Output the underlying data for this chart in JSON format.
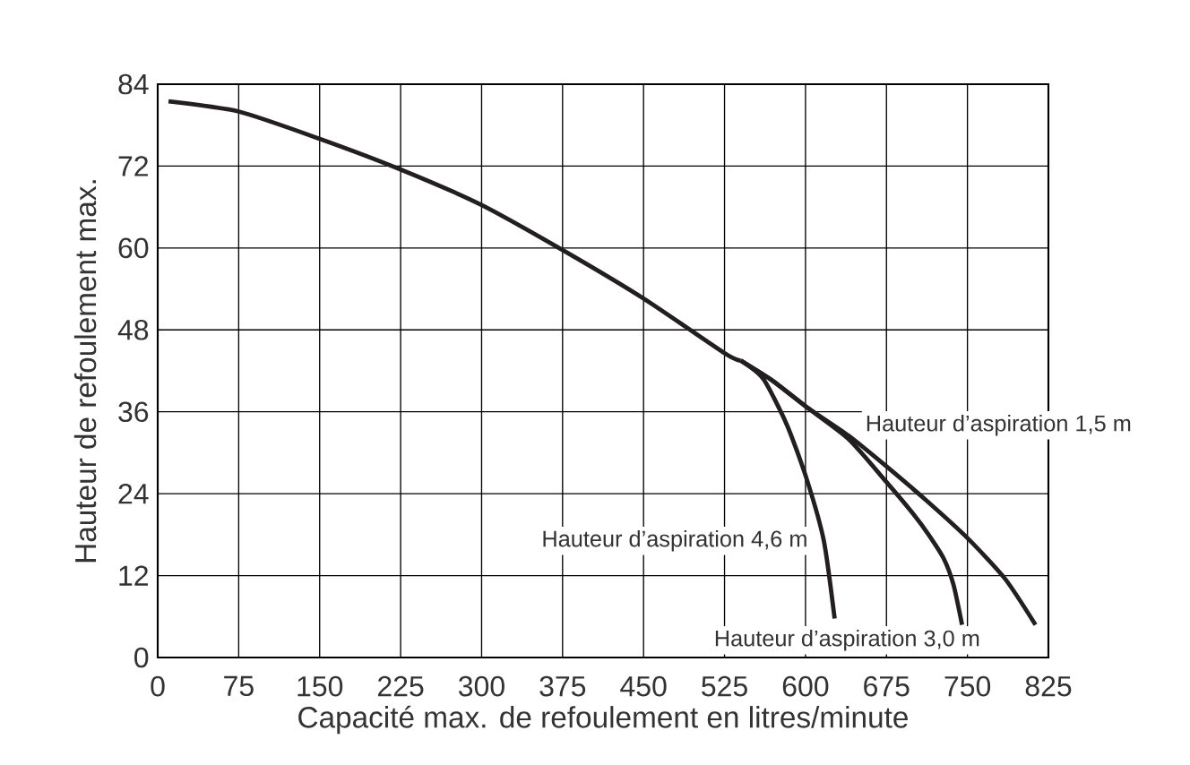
{
  "chart_data": {
    "type": "line",
    "xlabel": "Capacité max. de refoulement  en litres/minute",
    "ylabel": "Hauteur de refoulement max.",
    "xlim": [
      0,
      825
    ],
    "xticks": [
      0,
      75,
      150,
      225,
      300,
      375,
      450,
      525,
      600,
      675,
      750,
      825
    ],
    "ylim": [
      0,
      84
    ],
    "yticks": [
      0,
      12,
      24,
      36,
      48,
      60,
      72,
      84
    ],
    "grid": true,
    "marker": "none",
    "line_style": "solid",
    "series": [
      {
        "color": "#231f20",
        "x": [
          10,
          75,
          150,
          225,
          300,
          375,
          450,
          525,
          540
        ],
        "values": [
          81.5,
          80,
          76,
          71.5,
          66.3,
          59.7,
          52.6,
          44.6,
          43.5
        ]
      },
      {
        "name": "Hauteur d’aspiration 1,5 m",
        "color": "#231f20",
        "x": [
          540,
          570,
          601,
          640,
          675,
          712,
          750,
          785,
          813
        ],
        "values": [
          43.5,
          40.5,
          36.7,
          32.5,
          28,
          23,
          17.5,
          11.5,
          4.8
        ]
      },
      {
        "name": "Hauteur d’aspiration 3,0 m",
        "color": "#231f20",
        "x": [
          540,
          570,
          601,
          640,
          675,
          700,
          714,
          728,
          737,
          745
        ],
        "values": [
          43.5,
          40.5,
          36.7,
          32,
          25.7,
          21,
          18,
          14.5,
          10.7,
          4.8
        ]
      },
      {
        "name": "Hauteur d’aspiration 4,6 m",
        "color": "#231f20",
        "x": [
          540,
          561,
          583,
          601,
          617,
          627
        ],
        "values": [
          43.5,
          40.8,
          34,
          26.2,
          17.1,
          5.7
        ]
      }
    ]
  }
}
